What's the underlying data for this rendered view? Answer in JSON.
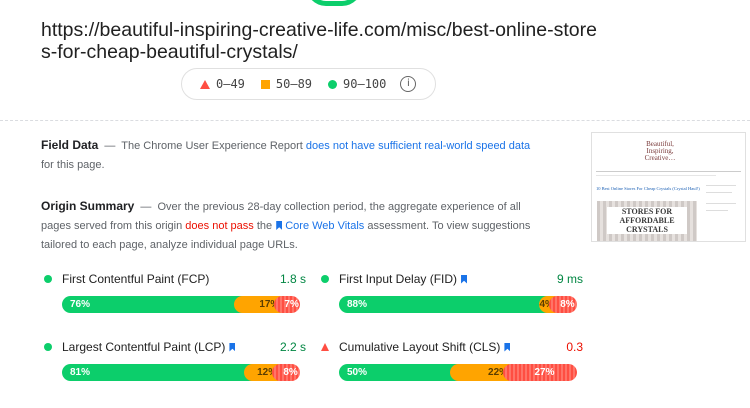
{
  "url": "https://beautiful-inspiring-creative-life.com/misc/best-online-stores-for-cheap-beautiful-crystals/",
  "legend": {
    "poor": "0–49",
    "average": "50–89",
    "good": "90–100",
    "info_icon": "i"
  },
  "field_data": {
    "title": "Field Data",
    "dash": "—",
    "text_before": "The Chrome User Experience Report",
    "link": "does not have sufficient real-world speed data",
    "text_after": "for this page."
  },
  "origin_summary": {
    "title": "Origin Summary",
    "dash": "—",
    "text_before": "Over the previous 28-day collection period, the aggregate experience of all pages served from this origin",
    "fail": "does not pass",
    "text_mid": "the",
    "cwv_link": "Core Web Vitals",
    "text_after": "assessment. To view suggestions tailored to each page, analyze individual page URLs."
  },
  "thumbnail": {
    "site_title_1": "Beautiful,",
    "site_title_2": "Inspiring,",
    "site_title_3": "Creative…",
    "heading": "10 Best Online Stores For Cheap Crystals (Crystal Haul!)",
    "image_text_1": "STORES FOR",
    "image_text_2": "AFFORDABLE",
    "image_text_3": "CRYSTALS"
  },
  "metrics": [
    {
      "name": "First Contentful Paint (FCP)",
      "value": "1.8 s",
      "status": "good",
      "cwv": false,
      "good": 76,
      "avg": 17,
      "poor": 7,
      "good_label": "76%",
      "avg_label": "17%",
      "poor_label": "7%"
    },
    {
      "name": "First Input Delay (FID)",
      "value": "9 ms",
      "status": "good",
      "cwv": true,
      "good": 88,
      "avg": 4,
      "poor": 8,
      "good_label": "88%",
      "avg_label": "4%",
      "poor_label": "8%"
    },
    {
      "name": "Largest Contentful Paint (LCP)",
      "value": "2.2 s",
      "status": "good",
      "cwv": true,
      "good": 81,
      "avg": 12,
      "poor": 8,
      "good_label": "81%",
      "avg_label": "12%",
      "poor_label": "8%"
    },
    {
      "name": "Cumulative Layout Shift (CLS)",
      "value": "0.3",
      "status": "poor",
      "cwv": true,
      "good": 50,
      "avg": 22,
      "poor": 27,
      "good_label": "50%",
      "avg_label": "22%",
      "poor_label": "27%"
    }
  ],
  "colors": {
    "good": "#0cce6b",
    "average": "#ffa400",
    "poor": "#ff4e42",
    "link": "#1a73e8"
  }
}
